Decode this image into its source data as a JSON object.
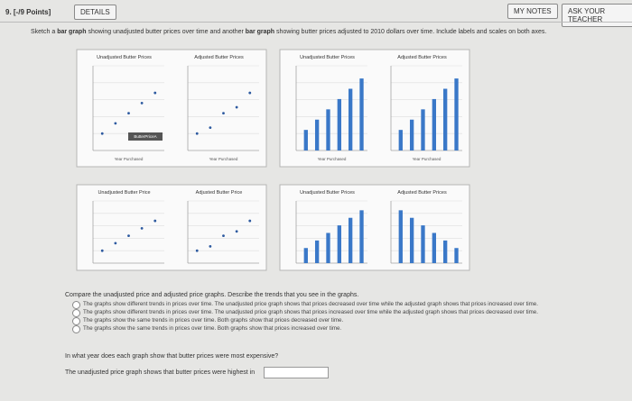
{
  "header": {
    "question": "9. [-/9 Points]",
    "details": "DETAILS",
    "my_notes": "MY NOTES",
    "ask_teacher": "ASK YOUR TEACHER"
  },
  "prompt": {
    "lead": "Sketch a",
    "bar1": "bar graph",
    "mid": "showing unadjusted butter prices over time and another",
    "bar2": "bar graph",
    "tail": "showing butter prices adjusted to 2010 dollars over time. Include labels and scales on both axes."
  },
  "panels": [
    {
      "charts": [
        {
          "title": "Unadjusted Butter Prices",
          "xlabel": "Year Purchased",
          "legend": "ButterPriceA"
        },
        {
          "title": "Adjusted Butter Prices",
          "xlabel": "Year Purchased"
        }
      ]
    },
    {
      "charts": [
        {
          "title": "Unadjusted Butter Prices",
          "xlabel": "Year Purchased"
        },
        {
          "title": "Adjusted Butter Prices",
          "xlabel": "Year Purchased"
        }
      ]
    },
    {
      "charts": [
        {
          "title": "Unadjusted Butter Price"
        },
        {
          "title": "Adjusted Butter Price"
        }
      ]
    },
    {
      "charts": [
        {
          "title": "Unadjusted Butter Prices"
        },
        {
          "title": "Adjusted Butter Prices"
        }
      ]
    }
  ],
  "compare": {
    "question": "Compare the unadjusted price and adjusted price graphs. Describe the trends that you see in the graphs.",
    "options": [
      "The graphs show different trends in prices over time. The unadjusted price graph shows that prices decreased over time while the adjusted graph shows that prices increased over time.",
      "The graphs show different trends in prices over time. The unadjusted price graph shows that prices increased over time while the adjusted graph shows that prices decreased over time.",
      "The graphs show the same trends in prices over time. Both graphs show that prices decreased over time.",
      "The graphs show the same trends in prices over time. Both graphs show that prices increased over time."
    ]
  },
  "year": {
    "question": "In what year does each graph show that butter prices were most expensive?",
    "answer_lead": "The unadjusted price graph shows that butter prices were highest in"
  }
}
